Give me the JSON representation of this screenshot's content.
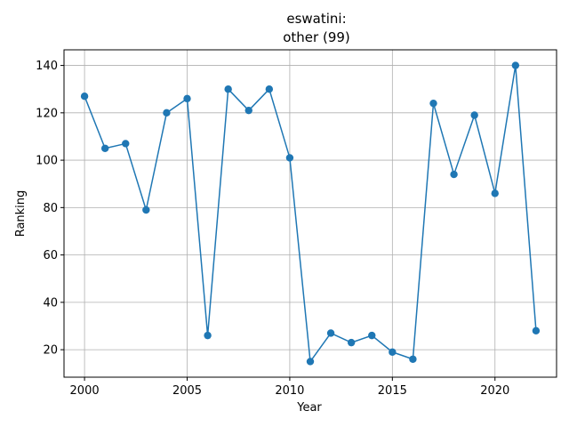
{
  "chart_data": {
    "type": "line",
    "title_line1": "eswatini:",
    "title_line2": "other (99)",
    "xlabel": "Year",
    "ylabel": "Ranking",
    "xlim": [
      1999.0,
      2023.0
    ],
    "ylim": [
      8.4,
      146.6
    ],
    "xticks": [
      2000,
      2005,
      2010,
      2015,
      2020
    ],
    "yticks": [
      20,
      40,
      60,
      80,
      100,
      120,
      140
    ],
    "grid": true,
    "color": "#1f77b4",
    "marker": "circle",
    "x": [
      2000,
      2001,
      2002,
      2003,
      2004,
      2005,
      2006,
      2007,
      2008,
      2009,
      2010,
      2011,
      2012,
      2013,
      2014,
      2015,
      2016,
      2017,
      2018,
      2019,
      2020,
      2021,
      2022
    ],
    "values": [
      127,
      105,
      107,
      79,
      120,
      126,
      26,
      130,
      121,
      130,
      101,
      15,
      27,
      23,
      26,
      19,
      16,
      124,
      94,
      119,
      86,
      140,
      28
    ]
  }
}
